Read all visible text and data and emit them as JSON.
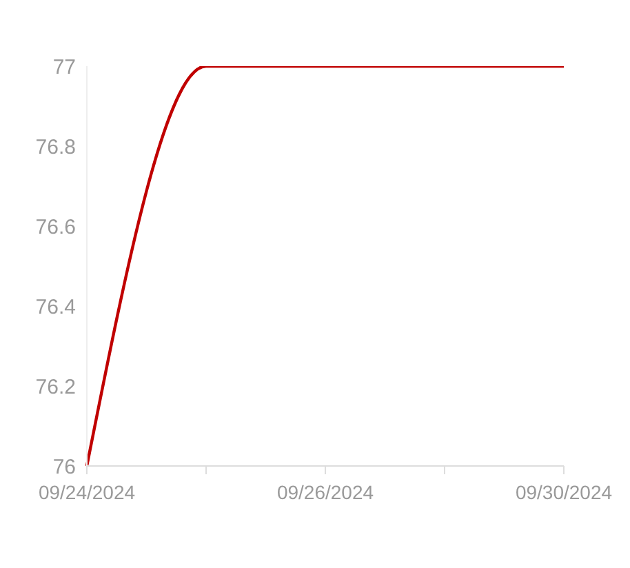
{
  "chart_data": {
    "type": "line",
    "categories": [
      "09/24/2024",
      null,
      "09/26/2024",
      null,
      "09/30/2024"
    ],
    "series": [
      {
        "color": "#c00000",
        "values": [
          76,
          77,
          77,
          77,
          77
        ]
      }
    ],
    "ylim": [
      76,
      77
    ],
    "yticks": [
      76,
      76.2,
      76.4,
      76.6,
      76.8,
      77
    ],
    "grid": false,
    "legend": false,
    "marker": "none",
    "line_style": "solid"
  }
}
